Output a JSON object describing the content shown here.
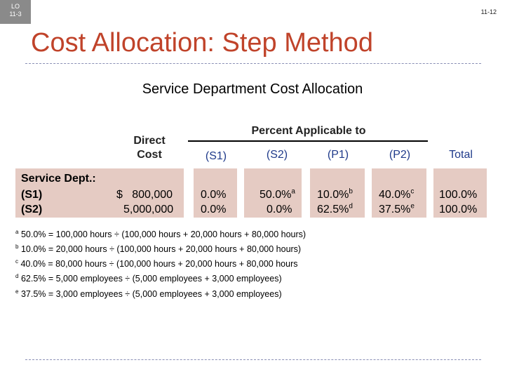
{
  "header": {
    "lo_line1": "LO",
    "lo_line2": "11-3",
    "slide_number": "11-12"
  },
  "title": "Cost Allocation: Step Method",
  "subtitle": "Service Department Cost Allocation",
  "table": {
    "direct_cost_header_1": "Direct",
    "direct_cost_header_2": "Cost",
    "percent_header": "Percent Applicable to",
    "columns": [
      "(S1)",
      "(S2)",
      "(P1)",
      "(P2)",
      "Total"
    ],
    "row_label_header": "Service Dept.:",
    "rows": [
      {
        "label": "(S1)",
        "direct_cost": "$   800,000",
        "s1": "0.0%",
        "s2": "50.0%",
        "s2_sup": "a",
        "p1": "10.0%",
        "p1_sup": "b",
        "p2": "40.0%",
        "p2_sup": "c",
        "total": "100.0%"
      },
      {
        "label": "(S2)",
        "direct_cost": "5,000,000",
        "s1": "0.0%",
        "s2": "0.0%",
        "s2_sup": "",
        "p1": "62.5%",
        "p1_sup": "d",
        "p2": "37.5%",
        "p2_sup": "e",
        "total": "100.0%"
      }
    ]
  },
  "footnotes": [
    {
      "mark": "a",
      "text": "50.0% = 100,000 hours ÷ (100,000 hours + 20,000 hours + 80,000 hours)"
    },
    {
      "mark": "b",
      "text": "10.0% = 20,000 hours ÷ (100,000 hours + 20,000 hours + 80,000 hours)"
    },
    {
      "mark": "c",
      "text": "40.0% = 80,000 hours ÷ (100,000 hours + 20,000 hours + 80,000 hours"
    },
    {
      "mark": "d",
      "text": "62.5% = 5,000 employees ÷ (5,000 employees + 3,000 employees)"
    },
    {
      "mark": "e",
      "text": "37.5% = 3,000 employees ÷ (5,000 employees + 3,000 employees)"
    }
  ],
  "colors": {
    "title": "#c0432a",
    "box": "#e5cbc3",
    "blue_header": "#1f3a8a",
    "total_header": "#1f3a8a"
  }
}
